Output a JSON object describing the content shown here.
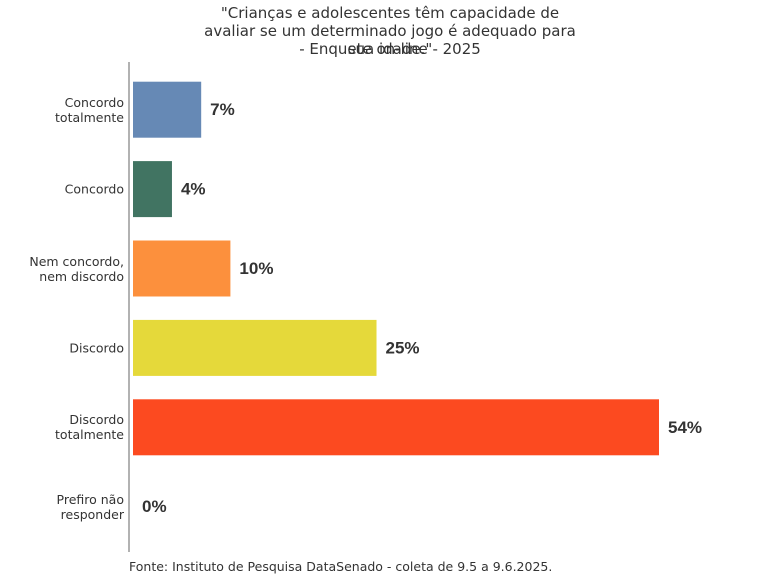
{
  "chart_data": {
    "type": "hbar",
    "title": "\"Crianças e adolescentes têm capacidade de avaliar se um determinado jogo é adequado para sua idade.\"",
    "subtitle": "- Enquete on-line - 2025",
    "categories": [
      "Concordo totalmente",
      "Concordo",
      "Nem concordo, nem discordo",
      "Discordo",
      "Discordo totalmente",
      "Prefiro não responder"
    ],
    "values": [
      7,
      4,
      10,
      25,
      54,
      0
    ],
    "value_labels": [
      "7%",
      "4%",
      "10%",
      "25%",
      "54%",
      "0%"
    ],
    "colors": [
      "#6689b5",
      "#417462",
      "#fc903d",
      "#e5d93a",
      "#fc4a20",
      "#999999"
    ],
    "source": "Fonte: Instituto de Pesquisa DataSenado - coleta de 9.5 a 9.6.2025."
  }
}
